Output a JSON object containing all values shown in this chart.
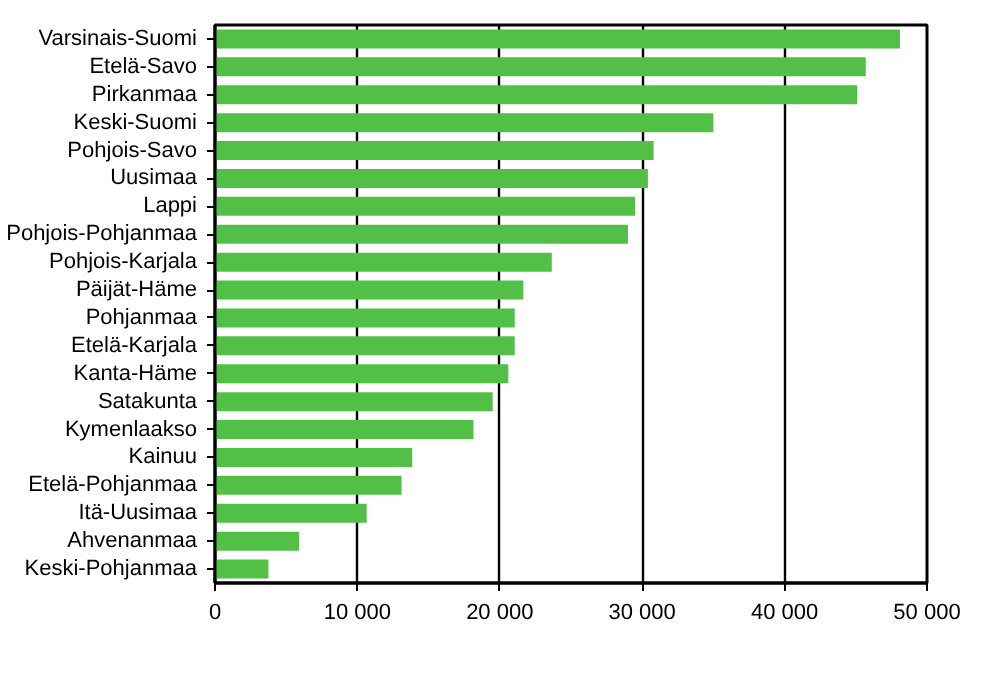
{
  "chart_data": {
    "type": "bar",
    "orientation": "horizontal",
    "categories": [
      "Varsinais-Suomi",
      "Etelä-Savo",
      "Pirkanmaa",
      "Keski-Suomi",
      "Pohjois-Savo",
      "Uusimaa",
      "Lappi",
      "Pohjois-Pohjanmaa",
      "Pohjois-Karjala",
      "Päijät-Häme",
      "Pohjanmaa",
      "Etelä-Karjala",
      "Kanta-Häme",
      "Satakunta",
      "Kymenlaakso",
      "Kainuu",
      "Etelä-Pohjanmaa",
      "Itä-Uusimaa",
      "Ahvenanmaa",
      "Keski-Pohjanmaa"
    ],
    "values": [
      48100,
      45700,
      45100,
      35000,
      30800,
      30400,
      29500,
      29000,
      23650,
      21650,
      21050,
      21050,
      20600,
      19500,
      18150,
      13850,
      13100,
      10650,
      5900,
      3750
    ],
    "color": "#52c046",
    "xlim": [
      0,
      50000
    ],
    "xticks": [
      0,
      {
        "value": 10000,
        "label": "10 000"
      },
      {
        "value": 20000,
        "label": "20 000"
      },
      {
        "value": 30000,
        "label": "30 000"
      },
      {
        "value": 40000,
        "label": "40 000"
      },
      {
        "value": 50000,
        "label": "50 000"
      }
    ],
    "grid": "x"
  }
}
